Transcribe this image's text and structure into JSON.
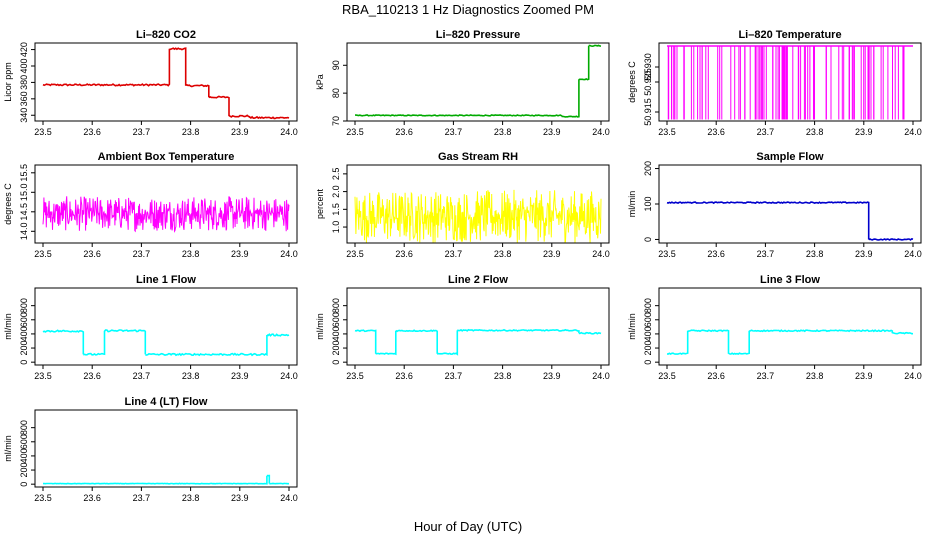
{
  "figure": {
    "title": "RBA_110213  1 Hz Diagnostics Zoomed PM",
    "xlabel": "Hour of Day (UTC)"
  },
  "chart_data": [
    {
      "type": "line",
      "title": "Li–820 CO2",
      "ylabel": "Licor ppm",
      "color": "#dd0000",
      "xlim": [
        23.5,
        24.0
      ],
      "ylim": [
        333,
        428
      ],
      "x_ticks": [
        23.5,
        23.6,
        23.7,
        23.8,
        23.9,
        24.0
      ],
      "y_ticks": [
        340,
        360,
        380,
        400,
        420
      ],
      "segments": [
        [
          23.5,
          23.757,
          377
        ],
        [
          23.757,
          23.79,
          421
        ],
        [
          23.79,
          23.837,
          376
        ],
        [
          23.837,
          23.878,
          362
        ],
        [
          23.878,
          23.92,
          339
        ],
        [
          23.92,
          24.0,
          337
        ]
      ],
      "noise": 1.0
    },
    {
      "type": "line",
      "title": "Li–820 Pressure",
      "ylabel": "kPa",
      "color": "#00aa00",
      "xlim": [
        23.5,
        24.0
      ],
      "ylim": [
        70,
        98
      ],
      "x_ticks": [
        23.5,
        23.6,
        23.7,
        23.8,
        23.9,
        24.0
      ],
      "y_ticks": [
        70,
        80,
        90
      ],
      "segments": [
        [
          23.5,
          23.92,
          72
        ],
        [
          23.92,
          23.955,
          71.6
        ],
        [
          23.955,
          23.975,
          85
        ],
        [
          23.975,
          24.0,
          97
        ]
      ],
      "noise": 0.15
    },
    {
      "type": "spikes",
      "title": "Li–820 Temperature",
      "ylabel": "degrees C",
      "color": "#ff00ff",
      "xlim": [
        23.5,
        24.0
      ],
      "ylim": [
        50.912,
        50.938
      ],
      "x_ticks": [
        23.5,
        23.6,
        23.7,
        23.8,
        23.9,
        24.0
      ],
      "y_ticks": [
        50.915,
        50.925,
        50.93
      ],
      "y_tick_labels": [
        "50.915",
        "50.925",
        "50.930"
      ],
      "high": 50.937,
      "low": 50.9125
    },
    {
      "type": "noise",
      "title": "Ambient Box Temperature",
      "ylabel": "degrees C",
      "color": "#ff00ff",
      "xlim": [
        23.5,
        24.0
      ],
      "ylim": [
        13.7,
        15.7
      ],
      "x_ticks": [
        23.5,
        23.6,
        23.7,
        23.8,
        23.9,
        24.0
      ],
      "y_ticks": [
        14.0,
        14.5,
        15.0,
        15.5
      ],
      "y_tick_labels": [
        "14.0",
        "14.5",
        "15.0",
        "15.5"
      ],
      "mean": 14.45,
      "amplitude": 0.45
    },
    {
      "type": "noise",
      "title": "Gas Stream RH",
      "ylabel": "percent",
      "color": "#ffff00",
      "xlim": [
        23.5,
        24.0
      ],
      "ylim": [
        0.55,
        2.75
      ],
      "x_ticks": [
        23.5,
        23.6,
        23.7,
        23.8,
        23.9,
        24.0
      ],
      "y_ticks": [
        1.0,
        1.5,
        2.0,
        2.5
      ],
      "y_tick_labels": [
        "1.0",
        "1.5",
        "2.0",
        "2.5"
      ],
      "mean": 1.3,
      "amplitude": 0.75
    },
    {
      "type": "line",
      "title": "Sample Flow",
      "ylabel": "ml/min",
      "color": "#0000cc",
      "xlim": [
        23.5,
        24.0
      ],
      "ylim": [
        -10,
        210
      ],
      "x_ticks": [
        23.5,
        23.6,
        23.7,
        23.8,
        23.9,
        24.0
      ],
      "y_ticks": [
        0,
        100,
        200
      ],
      "segments": [
        [
          23.5,
          23.91,
          104
        ],
        [
          23.91,
          24.0,
          0
        ]
      ],
      "noise": 1.5
    },
    {
      "type": "line",
      "title": "Line 1 Flow",
      "ylabel": "ml/min",
      "color": "#00ffff",
      "xlim": [
        23.5,
        24.0
      ],
      "ylim": [
        -40,
        1050
      ],
      "x_ticks": [
        23.5,
        23.6,
        23.7,
        23.8,
        23.9,
        24.0
      ],
      "y_ticks": [
        0,
        200,
        400,
        600,
        800
      ],
      "segments": [
        [
          23.5,
          23.582,
          440
        ],
        [
          23.582,
          23.625,
          110
        ],
        [
          23.625,
          23.708,
          445
        ],
        [
          23.708,
          23.955,
          110
        ],
        [
          23.955,
          24.0,
          385
        ]
      ],
      "noise": 12
    },
    {
      "type": "line",
      "title": "Line 2 Flow",
      "ylabel": "ml/min",
      "color": "#00ffff",
      "xlim": [
        23.5,
        24.0
      ],
      "ylim": [
        -40,
        1050
      ],
      "x_ticks": [
        23.5,
        23.6,
        23.7,
        23.8,
        23.9,
        24.0
      ],
      "y_ticks": [
        0,
        200,
        400,
        600,
        800
      ],
      "segments": [
        [
          23.5,
          23.542,
          445
        ],
        [
          23.542,
          23.583,
          120
        ],
        [
          23.583,
          23.667,
          445
        ],
        [
          23.667,
          23.708,
          120
        ],
        [
          23.708,
          23.955,
          450
        ],
        [
          23.955,
          24.0,
          410
        ]
      ],
      "noise": 8
    },
    {
      "type": "line",
      "title": "Line 3 Flow",
      "ylabel": "ml/min",
      "color": "#00ffff",
      "xlim": [
        23.5,
        24.0
      ],
      "ylim": [
        -40,
        1050
      ],
      "x_ticks": [
        23.5,
        23.6,
        23.7,
        23.8,
        23.9,
        24.0
      ],
      "y_ticks": [
        0,
        200,
        400,
        600,
        800
      ],
      "segments": [
        [
          23.5,
          23.542,
          120
        ],
        [
          23.542,
          23.625,
          445
        ],
        [
          23.625,
          23.667,
          120
        ],
        [
          23.667,
          23.958,
          445
        ],
        [
          23.958,
          24.0,
          410
        ]
      ],
      "noise": 8
    },
    {
      "type": "line",
      "title": "Line 4 (LT) Flow",
      "ylabel": "ml/min",
      "color": "#00ffff",
      "xlim": [
        23.5,
        24.0
      ],
      "ylim": [
        -40,
        1050
      ],
      "x_ticks": [
        23.5,
        23.6,
        23.7,
        23.8,
        23.9,
        24.0
      ],
      "y_ticks": [
        0,
        200,
        400,
        600,
        800
      ],
      "segments": [
        [
          23.5,
          23.955,
          8
        ],
        [
          23.955,
          23.96,
          120
        ],
        [
          23.96,
          24.0,
          8
        ]
      ],
      "noise": 3
    }
  ]
}
